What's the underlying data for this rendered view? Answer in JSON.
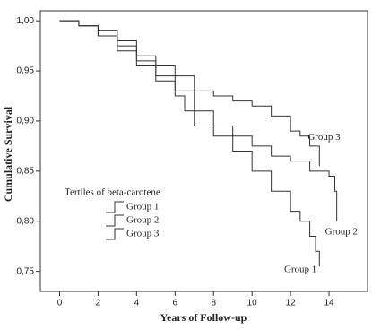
{
  "chart_data": {
    "type": "step",
    "xlabel": "Years of Follow-up",
    "ylabel": "Cumulative Survival",
    "legend_title": "Tertiles of beta-carotene",
    "legend": "center left",
    "xlim": [
      -1,
      16
    ],
    "ylim": [
      0.73,
      1.01
    ],
    "xticks": [
      0,
      2,
      4,
      6,
      8,
      10,
      12,
      14
    ],
    "yticks": [
      {
        "value": 0.75,
        "label": "0,75"
      },
      {
        "value": 0.8,
        "label": "0,80"
      },
      {
        "value": 0.85,
        "label": "0,85"
      },
      {
        "value": 0.9,
        "label": "0,90"
      },
      {
        "value": 0.95,
        "label": "0,95"
      },
      {
        "value": 1.0,
        "label": "1,00"
      }
    ],
    "series": [
      {
        "name": "Group 1",
        "color": "#333333",
        "x": [
          0,
          1,
          2,
          3,
          4,
          5,
          6,
          6.5,
          7,
          8,
          9,
          10,
          11,
          12,
          12.5,
          13,
          13.3,
          13.5
        ],
        "values": [
          1.0,
          0.995,
          0.985,
          0.97,
          0.955,
          0.94,
          0.925,
          0.91,
          0.895,
          0.885,
          0.87,
          0.85,
          0.83,
          0.81,
          0.8,
          0.785,
          0.77,
          0.755
        ]
      },
      {
        "name": "Group 2",
        "color": "#333333",
        "x": [
          0,
          1,
          2,
          3,
          4,
          5,
          6,
          7,
          8,
          9,
          10,
          11,
          12,
          13,
          14,
          14.3,
          14.4
        ],
        "values": [
          1.0,
          0.995,
          0.985,
          0.975,
          0.96,
          0.945,
          0.93,
          0.91,
          0.895,
          0.885,
          0.875,
          0.865,
          0.86,
          0.85,
          0.845,
          0.83,
          0.8
        ]
      },
      {
        "name": "Group 3",
        "color": "#333333",
        "x": [
          0,
          1,
          2,
          3,
          4,
          5,
          6,
          7,
          8,
          9,
          10,
          11,
          12,
          12.5,
          13,
          13.5
        ],
        "values": [
          1.0,
          0.995,
          0.99,
          0.98,
          0.965,
          0.955,
          0.945,
          0.93,
          0.925,
          0.92,
          0.915,
          0.905,
          0.89,
          0.885,
          0.875,
          0.855
        ]
      }
    ]
  }
}
